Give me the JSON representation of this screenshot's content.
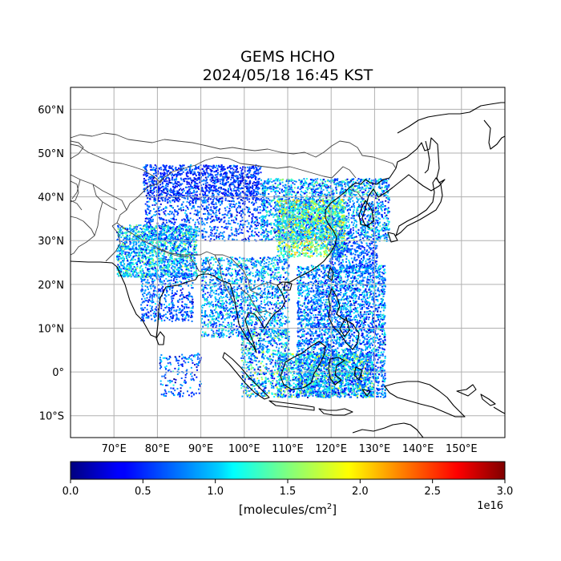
{
  "title": {
    "line1": "GEMS HCHO",
    "line2": "2024/05/18 16:45 KST"
  },
  "map": {
    "lon_range": [
      60,
      160
    ],
    "lat_range": [
      -15,
      65
    ],
    "lon_ticks": [
      {
        "value": 70,
        "label": "70°E"
      },
      {
        "value": 80,
        "label": "80°E"
      },
      {
        "value": 90,
        "label": "90°E"
      },
      {
        "value": 100,
        "label": "100°E"
      },
      {
        "value": 110,
        "label": "110°E"
      },
      {
        "value": 120,
        "label": "120°E"
      },
      {
        "value": 130,
        "label": "130°E"
      },
      {
        "value": 140,
        "label": "140°E"
      },
      {
        "value": 150,
        "label": "150°E"
      }
    ],
    "lat_ticks": [
      {
        "value": 60,
        "label": "60°N"
      },
      {
        "value": 50,
        "label": "50°N"
      },
      {
        "value": 40,
        "label": "40°N"
      },
      {
        "value": 30,
        "label": "30°N"
      },
      {
        "value": 20,
        "label": "20°N"
      },
      {
        "value": 10,
        "label": "10°N"
      },
      {
        "value": 0,
        "label": "0°"
      },
      {
        "value": -10,
        "label": "10°S"
      }
    ],
    "grid": true,
    "colors": {
      "coast": "#000000",
      "border": "#444444",
      "grid": "#b0b0b0"
    }
  },
  "colorbar": {
    "colormap": "jet",
    "min": 0.0,
    "max": 3.0,
    "ticks": [
      {
        "value": 0.0,
        "label": "0.0"
      },
      {
        "value": 0.5,
        "label": "0.5"
      },
      {
        "value": 1.0,
        "label": "1.0"
      },
      {
        "value": 1.5,
        "label": "1.5"
      },
      {
        "value": 2.0,
        "label": "2.0"
      },
      {
        "value": 2.5,
        "label": "2.5"
      },
      {
        "value": 3.0,
        "label": "3.0"
      }
    ],
    "label_text": "[molecules/cm",
    "label_sup": "2",
    "label_close": "]",
    "exponent": "1e16"
  }
}
